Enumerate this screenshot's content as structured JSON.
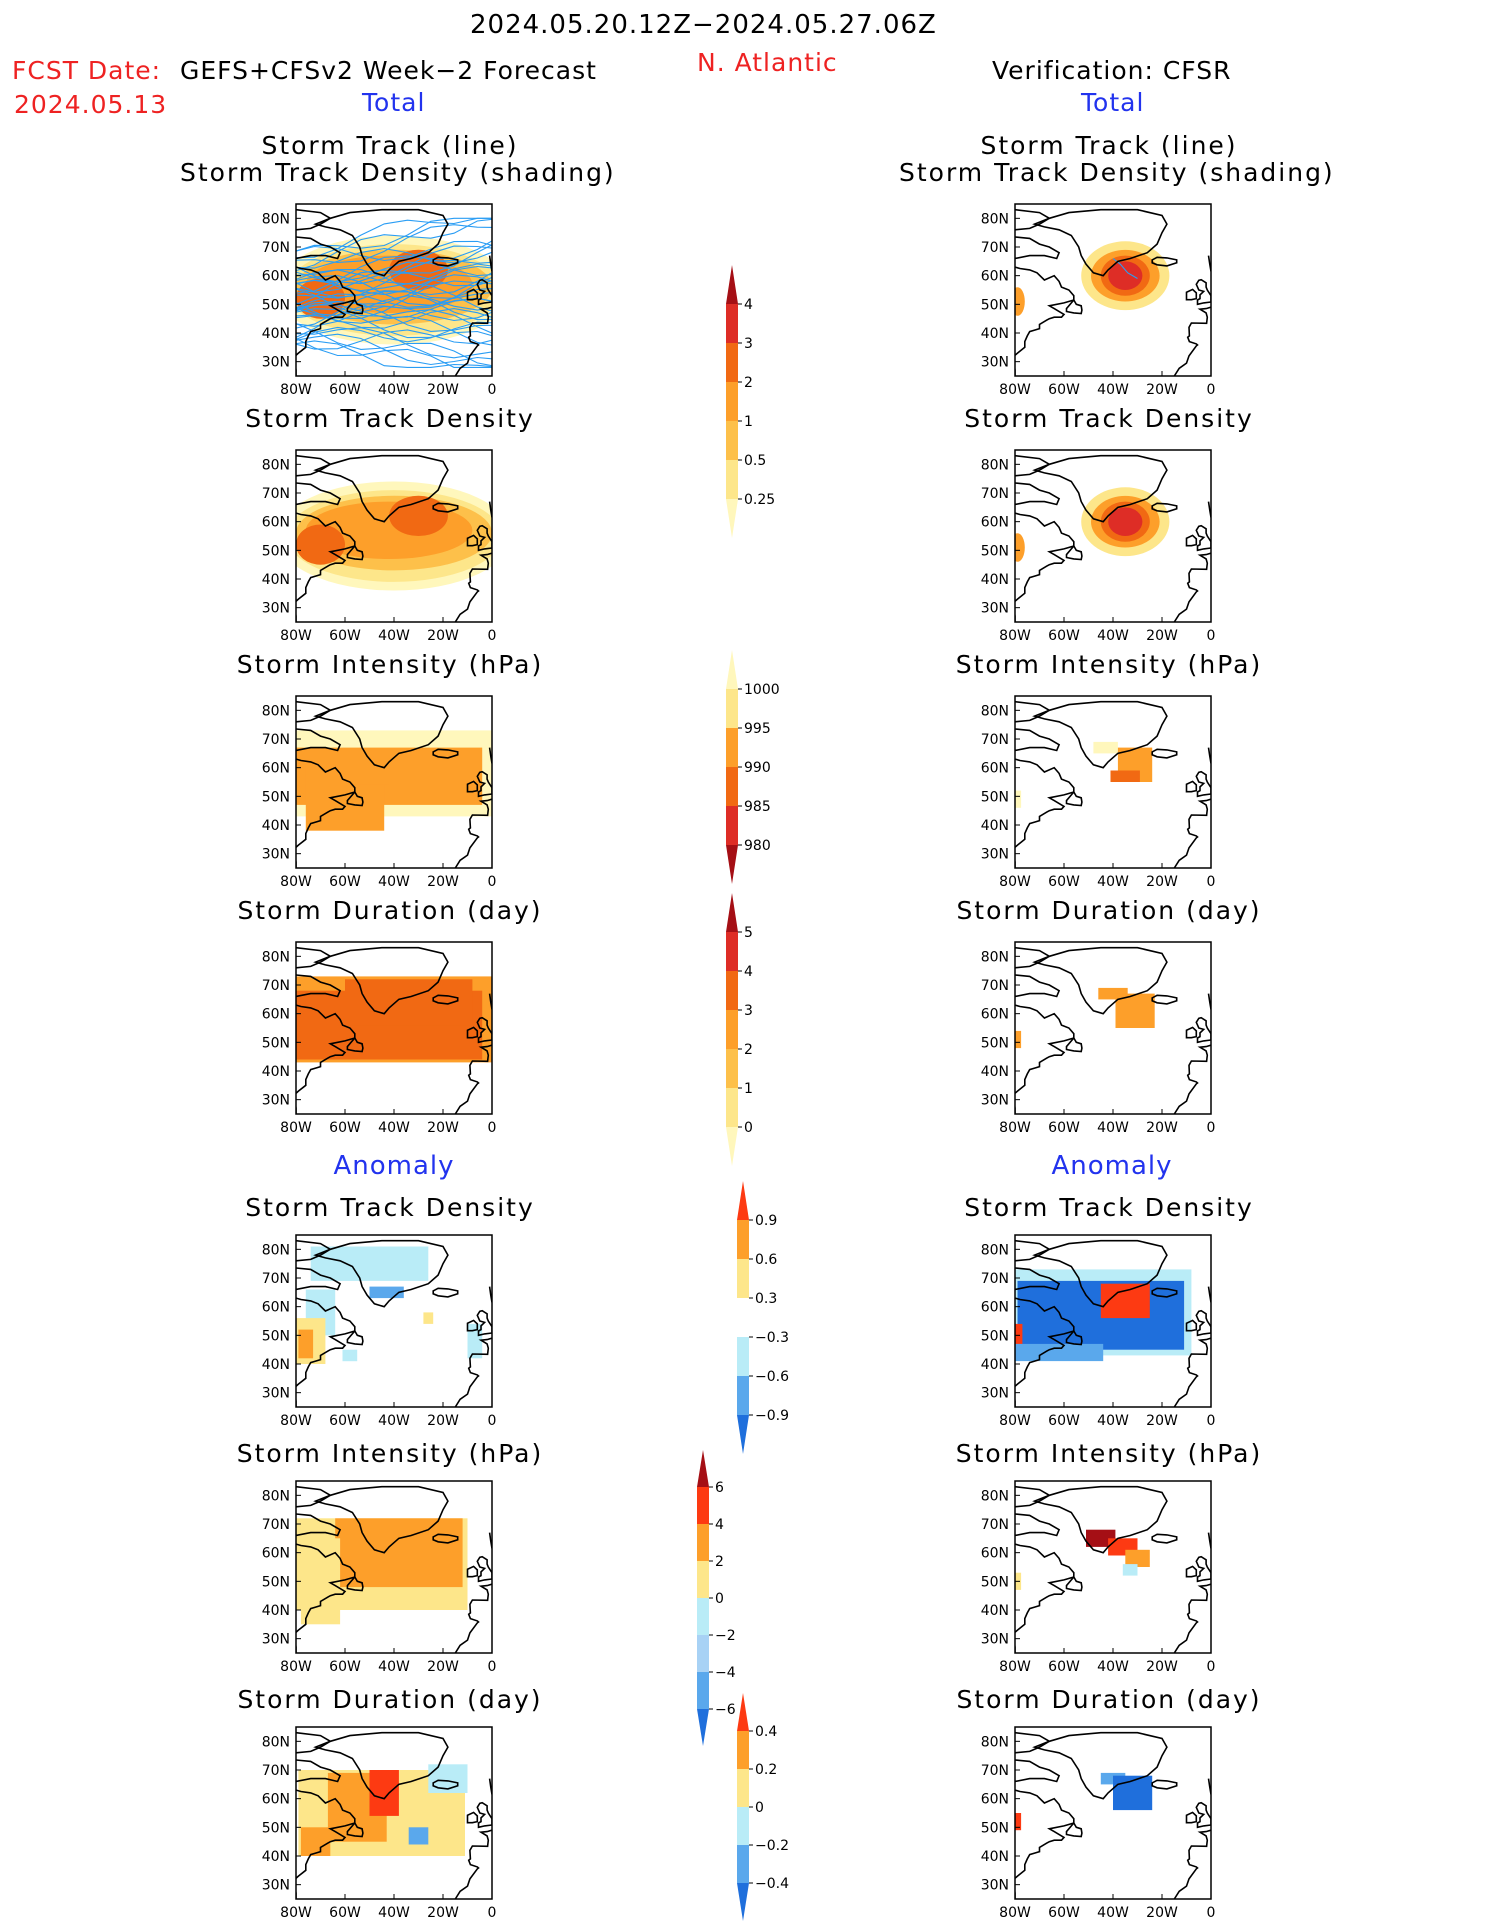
{
  "header": {
    "date_range": "2024.05.20.12Z−2024.05.27.06Z",
    "region": "N. Atlantic",
    "fcst_label": "FCST Date:",
    "forecast_name": "GEFS+CFSv2 Week−2 Forecast",
    "fcst_date": "2024.05.13",
    "verification": "Verification: CFSR",
    "total_left": "Total",
    "total_right": "Total",
    "anomaly_left": "Anomaly",
    "anomaly_right": "Anomaly"
  },
  "titles": {
    "track_line": "Storm Track (line)",
    "track_density_shading": "Storm Track Density (shading)",
    "track_density": "Storm Track Density",
    "intensity": "Storm Intensity (hPa)",
    "duration": "Storm Duration (day)"
  },
  "axes": {
    "lat_labels": [
      "80N",
      "70N",
      "60N",
      "50N",
      "40N",
      "30N"
    ],
    "lon_labels": [
      "80W",
      "60W",
      "40W",
      "20W",
      "0"
    ]
  },
  "colorbars": {
    "density": {
      "labels": [
        "4",
        "3",
        "2",
        "1",
        "0.5",
        "0.25"
      ],
      "colors": [
        "#a50f15",
        "#de2d26",
        "#f16913",
        "#fd9f2a",
        "#fdc04a",
        "#fde68a",
        "#fff7bc"
      ]
    },
    "intensity": {
      "labels": [
        "1000",
        "995",
        "990",
        "985",
        "980"
      ],
      "colors": [
        "#fff7bc",
        "#fde68a",
        "#fd9f2a",
        "#f16913",
        "#de2d26",
        "#a50f15"
      ]
    },
    "duration": {
      "labels": [
        "5",
        "4",
        "3",
        "2",
        "1",
        "0"
      ],
      "colors": [
        "#a50f15",
        "#de2d26",
        "#f16913",
        "#fd9f2a",
        "#fdc04a",
        "#fde68a",
        "#fff7bc"
      ]
    },
    "density_anom": {
      "labels": [
        "0.9",
        "0.6",
        "0.3",
        "−0.3",
        "−0.6",
        "−0.9"
      ],
      "colors": [
        "#fd3a12",
        "#fd9f2a",
        "#fde68a",
        "#ffffff",
        "#b9ecf7",
        "#5aa8ec",
        "#1f6fdc"
      ]
    },
    "intensity_anom": {
      "labels": [
        "6",
        "4",
        "2",
        "0",
        "−2",
        "−4",
        "−6"
      ],
      "colors": [
        "#a50f15",
        "#fd3a12",
        "#fd9f2a",
        "#fde68a",
        "#b9ecf7",
        "#a8d2f5",
        "#5aa8ec",
        "#1f6fdc"
      ]
    },
    "duration_anom": {
      "labels": [
        "0.4",
        "0.2",
        "0",
        "−0.2",
        "−0.4"
      ],
      "colors": [
        "#fd3a12",
        "#fd9f2a",
        "#fde68a",
        "#b9ecf7",
        "#5aa8ec",
        "#1f6fdc"
      ]
    }
  }
}
